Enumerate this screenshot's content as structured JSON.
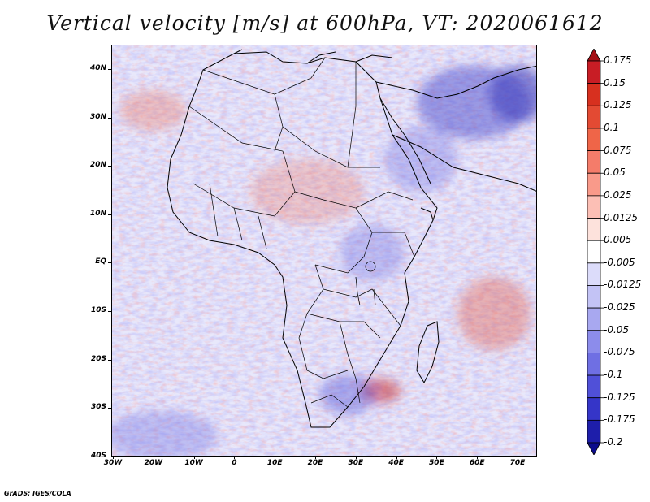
{
  "title": "Vertical velocity [m/s] at 600hPa, VT: 2020061612",
  "map": {
    "region": "Africa and Middle East",
    "lat_labels": [
      "40N",
      "30N",
      "20N",
      "10N",
      "EQ",
      "10S",
      "20S",
      "30S",
      "40S"
    ],
    "lon_labels": [
      "30W",
      "20W",
      "10W",
      "0",
      "10E",
      "20E",
      "30E",
      "40E",
      "50E",
      "60E",
      "70E"
    ]
  },
  "colorbar": {
    "labels": [
      "0.175",
      "0.15",
      "0.125",
      "0.1",
      "0.075",
      "0.05",
      "0.025",
      "0.0125",
      "0.005",
      "-0.005",
      "-0.0125",
      "-0.025",
      "-0.05",
      "-0.075",
      "-0.1",
      "-0.125",
      "-0.175",
      "-0.2"
    ],
    "colors": [
      "#a50f15",
      "#c81d25",
      "#d7301f",
      "#e34a33",
      "#ef6548",
      "#f47c6a",
      "#f99a8a",
      "#fcbfb5",
      "#fde2dc",
      "#ffffff",
      "#dcdcfa",
      "#c3c3f5",
      "#a8a8f0",
      "#8c8ceb",
      "#6f6fe3",
      "#5050d8",
      "#3535c8",
      "#1e1eaa",
      "#0c0c8c"
    ]
  },
  "credit": "GrADS: IGES/COLA"
}
